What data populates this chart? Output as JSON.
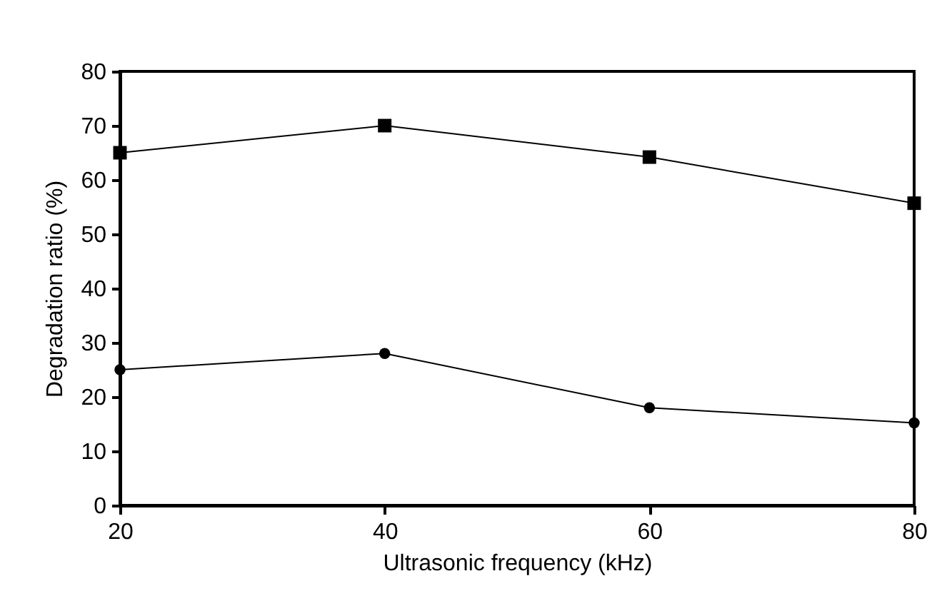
{
  "chart_data": {
    "type": "line",
    "xlabel": "Ultrasonic frequency (kHz)",
    "ylabel": "Degradation ratio (%)",
    "x": [
      20,
      40,
      60,
      80
    ],
    "series": [
      {
        "color": "#000000",
        "marker": "square",
        "values": [
          65,
          70,
          64.2,
          55.7
        ]
      },
      {
        "color": "#000000",
        "marker": "circle",
        "values": [
          25,
          28,
          18,
          15.2
        ]
      }
    ],
    "xlim": [
      20,
      80
    ],
    "xticks": [
      20,
      40,
      60,
      80
    ],
    "ylim": [
      0,
      80
    ],
    "yticks": [
      0,
      10,
      20,
      30,
      40,
      50,
      60,
      70,
      80
    ],
    "grid": false,
    "line_style": "solid"
  }
}
